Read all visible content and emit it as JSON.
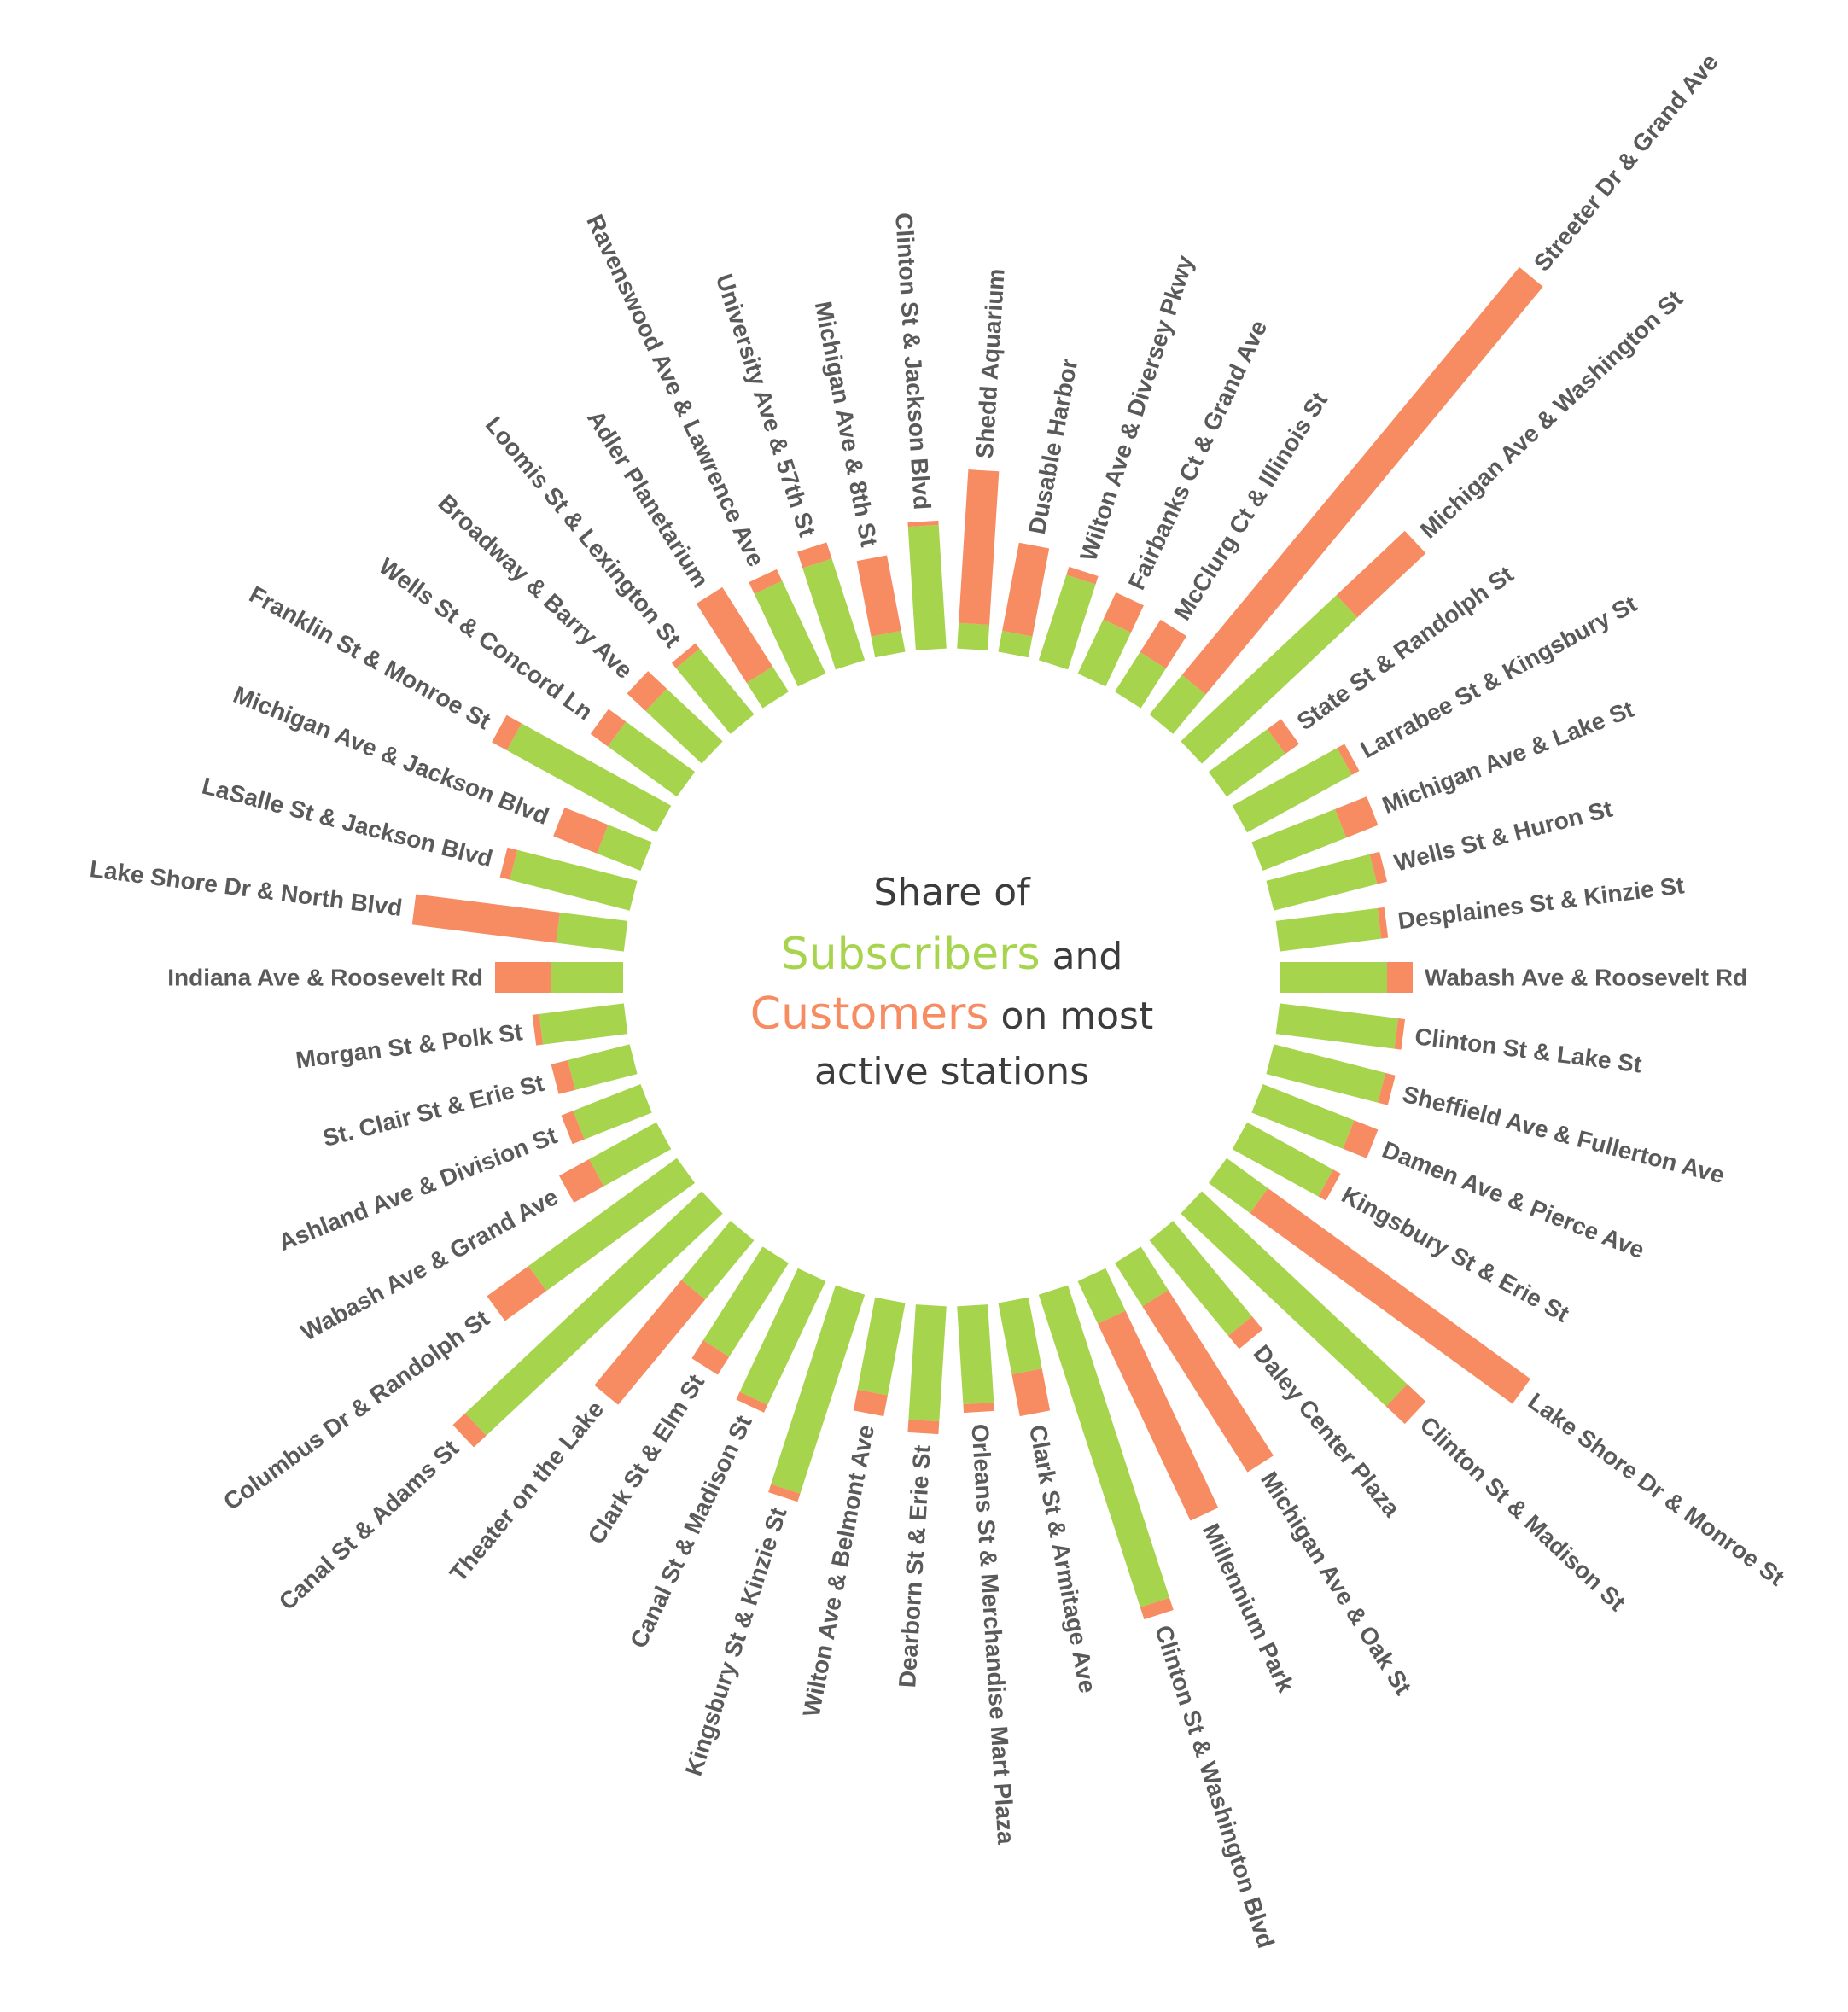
{
  "title": {
    "line1": "Share of",
    "subscribers_word": "Subscribers",
    "and_word": " and",
    "customers_word": "Customers",
    "on_most_word": " on most",
    "line4": "active stations"
  },
  "colors": {
    "subscribers": "#a6d44c",
    "customers": "#f78b62",
    "label": "#5a5a5a"
  },
  "chart_data": {
    "type": "radial-stacked-bar",
    "series": [
      {
        "name": "Subscribers",
        "color": "#a6d44c"
      },
      {
        "name": "Customers",
        "color": "#f78b62"
      }
    ],
    "stations": [
      {
        "name": "Shedd Aquarium",
        "subscribers": 30,
        "customers": 180
      },
      {
        "name": "Dusable Harbor",
        "subscribers": 25,
        "customers": 105
      },
      {
        "name": "Wilton Ave & Diversey Pkwy",
        "subscribers": 105,
        "customers": 10
      },
      {
        "name": "Fairbanks Ct & Grand Ave",
        "subscribers": 70,
        "customers": 35
      },
      {
        "name": "McClurg Ct & Illinois St",
        "subscribers": 55,
        "customers": 45
      },
      {
        "name": "Streeter Dr & Grand Ave",
        "subscribers": 60,
        "customers": 620
      },
      {
        "name": "Michigan Ave & Washington St",
        "subscribers": 250,
        "customers": 110
      },
      {
        "name": "State St & Randolph St",
        "subscribers": 85,
        "customers": 20
      },
      {
        "name": "Larrabee St & Kingsbury St",
        "subscribers": 140,
        "customers": 10
      },
      {
        "name": "Michigan Ave & Lake St",
        "subscribers": 105,
        "customers": 40
      },
      {
        "name": "Wells St & Huron St",
        "subscribers": 125,
        "customers": 12
      },
      {
        "name": "Desplaines St & Kinzie St",
        "subscribers": 120,
        "customers": 8
      },
      {
        "name": "Wabash Ave & Roosevelt Rd",
        "subscribers": 125,
        "customers": 30
      },
      {
        "name": "Clinton St & Lake St",
        "subscribers": 140,
        "customers": 8
      },
      {
        "name": "Sheffield Ave & Fullerton Ave",
        "subscribers": 135,
        "customers": 12
      },
      {
        "name": "Damen Ave & Pierce Ave",
        "subscribers": 115,
        "customers": 30
      },
      {
        "name": "Kingsbury St & Erie St",
        "subscribers": 115,
        "customers": 10
      },
      {
        "name": "Lake Shore Dr & Monroe St",
        "subscribers": 60,
        "customers": 380
      },
      {
        "name": "Clinton St & Madison St",
        "subscribers": 330,
        "customers": 30
      },
      {
        "name": "Daley Center Plaza",
        "subscribers": 145,
        "customers": 20
      },
      {
        "name": "Michigan Ave & Oak St",
        "subscribers": 60,
        "customers": 230
      },
      {
        "name": "Millennium Park",
        "subscribers": 55,
        "customers": 255
      },
      {
        "name": "Clinton St & Washington Blvd",
        "subscribers": 385,
        "customers": 15
      },
      {
        "name": "Clark St & Armitage Ave",
        "subscribers": 85,
        "customers": 50
      },
      {
        "name": "Orleans St & Merchandise Mart Plaza",
        "subscribers": 115,
        "customers": 10
      },
      {
        "name": "Dearborn St & Erie St",
        "subscribers": 135,
        "customers": 15
      },
      {
        "name": "Wilton Ave & Belmont Ave",
        "subscribers": 110,
        "customers": 25
      },
      {
        "name": "Kingsbury St & Kinzie St",
        "subscribers": 245,
        "customers": 10
      },
      {
        "name": "Canal St & Madison St",
        "subscribers": 160,
        "customers": 10
      },
      {
        "name": "Clark St & Elm St",
        "subscribers": 130,
        "customers": 25
      },
      {
        "name": "Theater on the Lake",
        "subscribers": 90,
        "customers": 160
      },
      {
        "name": "Canal St & Adams St",
        "subscribers": 380,
        "customers": 20
      },
      {
        "name": "Columbus Dr & Randolph St",
        "subscribers": 215,
        "customers": 60
      },
      {
        "name": "Wabash Ave & Grand Ave",
        "subscribers": 90,
        "customers": 40
      },
      {
        "name": "Ashland Ave & Division St",
        "subscribers": 85,
        "customers": 15
      },
      {
        "name": "St. Clair St & Erie St",
        "subscribers": 75,
        "customers": 20
      },
      {
        "name": "Morgan St & Polk St",
        "subscribers": 100,
        "customers": 8
      },
      {
        "name": "Indiana Ave & Roosevelt Rd",
        "subscribers": 85,
        "customers": 65
      },
      {
        "name": "Lake Shore Dr & North Blvd",
        "subscribers": 80,
        "customers": 170
      },
      {
        "name": "LaSalle St & Jackson Blvd",
        "subscribers": 145,
        "customers": 12
      },
      {
        "name": "Michigan Ave & Jackson Blvd",
        "subscribers": 55,
        "customers": 55
      },
      {
        "name": "Franklin St & Monroe St",
        "subscribers": 200,
        "customers": 20
      },
      {
        "name": "Wells St & Concord Ln",
        "subscribers": 100,
        "customers": 25
      },
      {
        "name": "Broadway & Barry Ave",
        "subscribers": 90,
        "customers": 30
      },
      {
        "name": "Loomis St & Lexington St",
        "subscribers": 100,
        "customers": 8
      },
      {
        "name": "Adler Planetarium",
        "subscribers": 35,
        "customers": 110
      },
      {
        "name": "Ravenswood Ave & Lawrence Ave",
        "subscribers": 120,
        "customers": 15
      },
      {
        "name": "University Ave & 57th St",
        "subscribers": 125,
        "customers": 20
      },
      {
        "name": "Michigan Ave & 8th St",
        "subscribers": 25,
        "customers": 90
      },
      {
        "name": "Clinton St & Jackson Blvd",
        "subscribers": 145,
        "customers": 5
      }
    ]
  }
}
